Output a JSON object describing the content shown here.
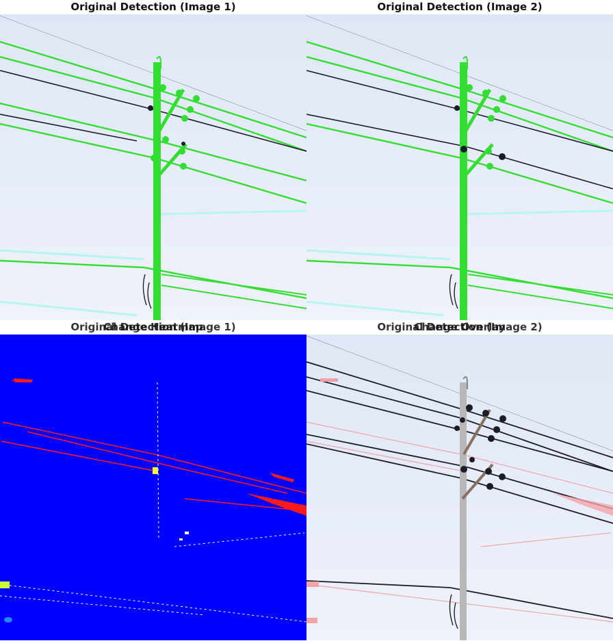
{
  "panels": {
    "top_left": {
      "title": "Original Detection (Image 1)"
    },
    "top_right": {
      "title": "Original Detection (Image 2)"
    },
    "bottom_left": {
      "title_a": "Original Detection (Image 1)",
      "title_b": "Change Heatmap"
    },
    "bottom_right": {
      "title_a": "Original Detection (Image 2)",
      "title_b": "Change Overlay"
    }
  },
  "colors": {
    "sky": "#e6ecf7",
    "detection_green": "#33dd33",
    "wire_dark": "#1c1c28",
    "heatmap_bg": "#0000ff",
    "heatmap_change": "#ff1a1a",
    "overlay_change": "#f4a3a8"
  }
}
